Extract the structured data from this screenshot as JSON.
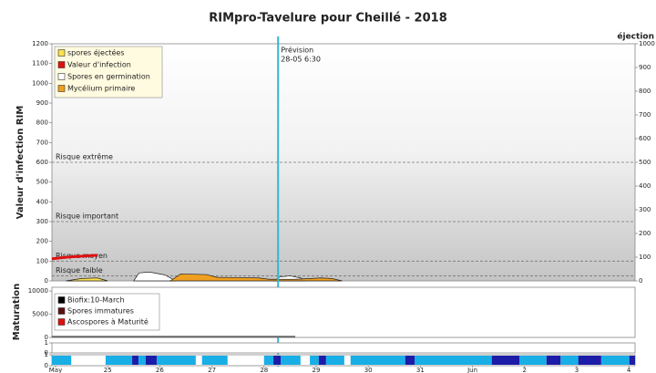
{
  "chart_data": [
    {
      "type": "area",
      "title": "RIMpro-Tavelure pour  Cheillé - 2018",
      "y_label": "Valeur d'infection RIM",
      "y2_label": "éjection",
      "xlim": [
        -0.07,
        11.12
      ],
      "ylim": [
        0,
        1200
      ],
      "yticks": [
        0,
        100,
        200,
        300,
        400,
        500,
        600,
        700,
        800,
        900,
        1000,
        1100,
        1200
      ],
      "y2lim": [
        0,
        1000
      ],
      "y2ticks": [
        0,
        100,
        200,
        300,
        400,
        500,
        600,
        700,
        800,
        900,
        1000
      ],
      "risk_levels": [
        {
          "label": "Risque extrême",
          "value": 600
        },
        {
          "label": "Risque important",
          "value": 300
        },
        {
          "label": "Risque moyen",
          "value": 100
        },
        {
          "label": "Risque faible",
          "value": 25
        }
      ],
      "forecast": {
        "label": "Prévision",
        "date": "28-05 6:30",
        "x": 4.27,
        "color": "#30b8d0"
      },
      "series": [
        {
          "name": "spores éjectées",
          "color": "#ffe14d",
          "type": "area",
          "x": [
            0.2,
            0.5,
            0.8,
            1.0
          ],
          "values": [
            0,
            12,
            15,
            0
          ]
        },
        {
          "name": "Valeur d'infection",
          "color": "#e01010",
          "type": "line",
          "x": [
            -0.07,
            0.3,
            0.8
          ],
          "values": [
            112,
            122,
            130
          ]
        },
        {
          "name": "Spores en germination",
          "color": "#ffffff",
          "type": "area",
          "x": [
            1.5,
            1.6,
            1.8,
            2.1,
            2.3,
            2.4,
            4.2,
            4.3,
            4.5,
            4.7,
            4.8
          ],
          "values": [
            0,
            40,
            45,
            30,
            0,
            null,
            0,
            20,
            25,
            15,
            0
          ]
        },
        {
          "name": "Mycélium primaire",
          "color": "#f0a020",
          "type": "area",
          "x": [
            2.2,
            2.4,
            2.9,
            3.1,
            3.9,
            4.1,
            4.6,
            5.1,
            5.3,
            5.5
          ],
          "values": [
            0,
            35,
            32,
            18,
            15,
            8,
            8,
            15,
            12,
            0
          ]
        }
      ]
    },
    {
      "type": "line",
      "y_label": "Maturation",
      "xlim": [
        -0.07,
        11.12
      ],
      "ylim": [
        0,
        10800
      ],
      "yticks": [
        0,
        5000,
        10000
      ],
      "series": [
        {
          "name": "Biofix:10-March",
          "color": "#000000",
          "x": [],
          "values": []
        },
        {
          "name": "Spores immatures",
          "color": "#5a1010",
          "x": [
            -0.07,
            4.6
          ],
          "values": [
            150,
            150
          ]
        },
        {
          "name": "Ascospores à Maturité",
          "color": "#e01010",
          "x": [],
          "values": []
        }
      ]
    },
    {
      "type": "line",
      "ylim": [
        0,
        1
      ],
      "yticks": [
        0,
        1
      ],
      "series": []
    },
    {
      "type": "strip",
      "xlim": [
        -0.07,
        11.12
      ],
      "ylim": [
        0,
        1
      ],
      "yticks": [
        0,
        1
      ],
      "xticks": [
        {
          "value": 0,
          "label": "May"
        },
        {
          "value": 1,
          "label": "25"
        },
        {
          "value": 2,
          "label": "26"
        },
        {
          "value": 3,
          "label": "27"
        },
        {
          "value": 4,
          "label": "28"
        },
        {
          "value": 5,
          "label": "29"
        },
        {
          "value": 6,
          "label": "30"
        },
        {
          "value": 7,
          "label": "31"
        },
        {
          "value": 8,
          "label": "Jun"
        },
        {
          "value": 9,
          "label": "2"
        },
        {
          "value": 10,
          "label": "3"
        },
        {
          "value": 11,
          "label": "4"
        }
      ],
      "series": [
        {
          "color": "#18aee6",
          "x0": [
            -0.07,
            0.96,
            1.59,
            1.94,
            2.81,
            4.0,
            4.32,
            4.88,
            5.19,
            5.66,
            6.89,
            8.9,
            9.69,
            10.47
          ],
          "x1": [
            0.3,
            1.47,
            1.73,
            2.69,
            3.3,
            4.18,
            4.7,
            5.05,
            5.54,
            6.71,
            8.37,
            9.42,
            10.03,
            11.01
          ]
        },
        {
          "color": "#1c1ca8",
          "x0": [
            1.47,
            1.73,
            4.18,
            5.05,
            6.71,
            8.37,
            9.42,
            10.03,
            11.01
          ],
          "x1": [
            1.59,
            1.94,
            4.32,
            5.19,
            6.89,
            8.9,
            9.69,
            10.47,
            11.12
          ]
        }
      ]
    }
  ]
}
